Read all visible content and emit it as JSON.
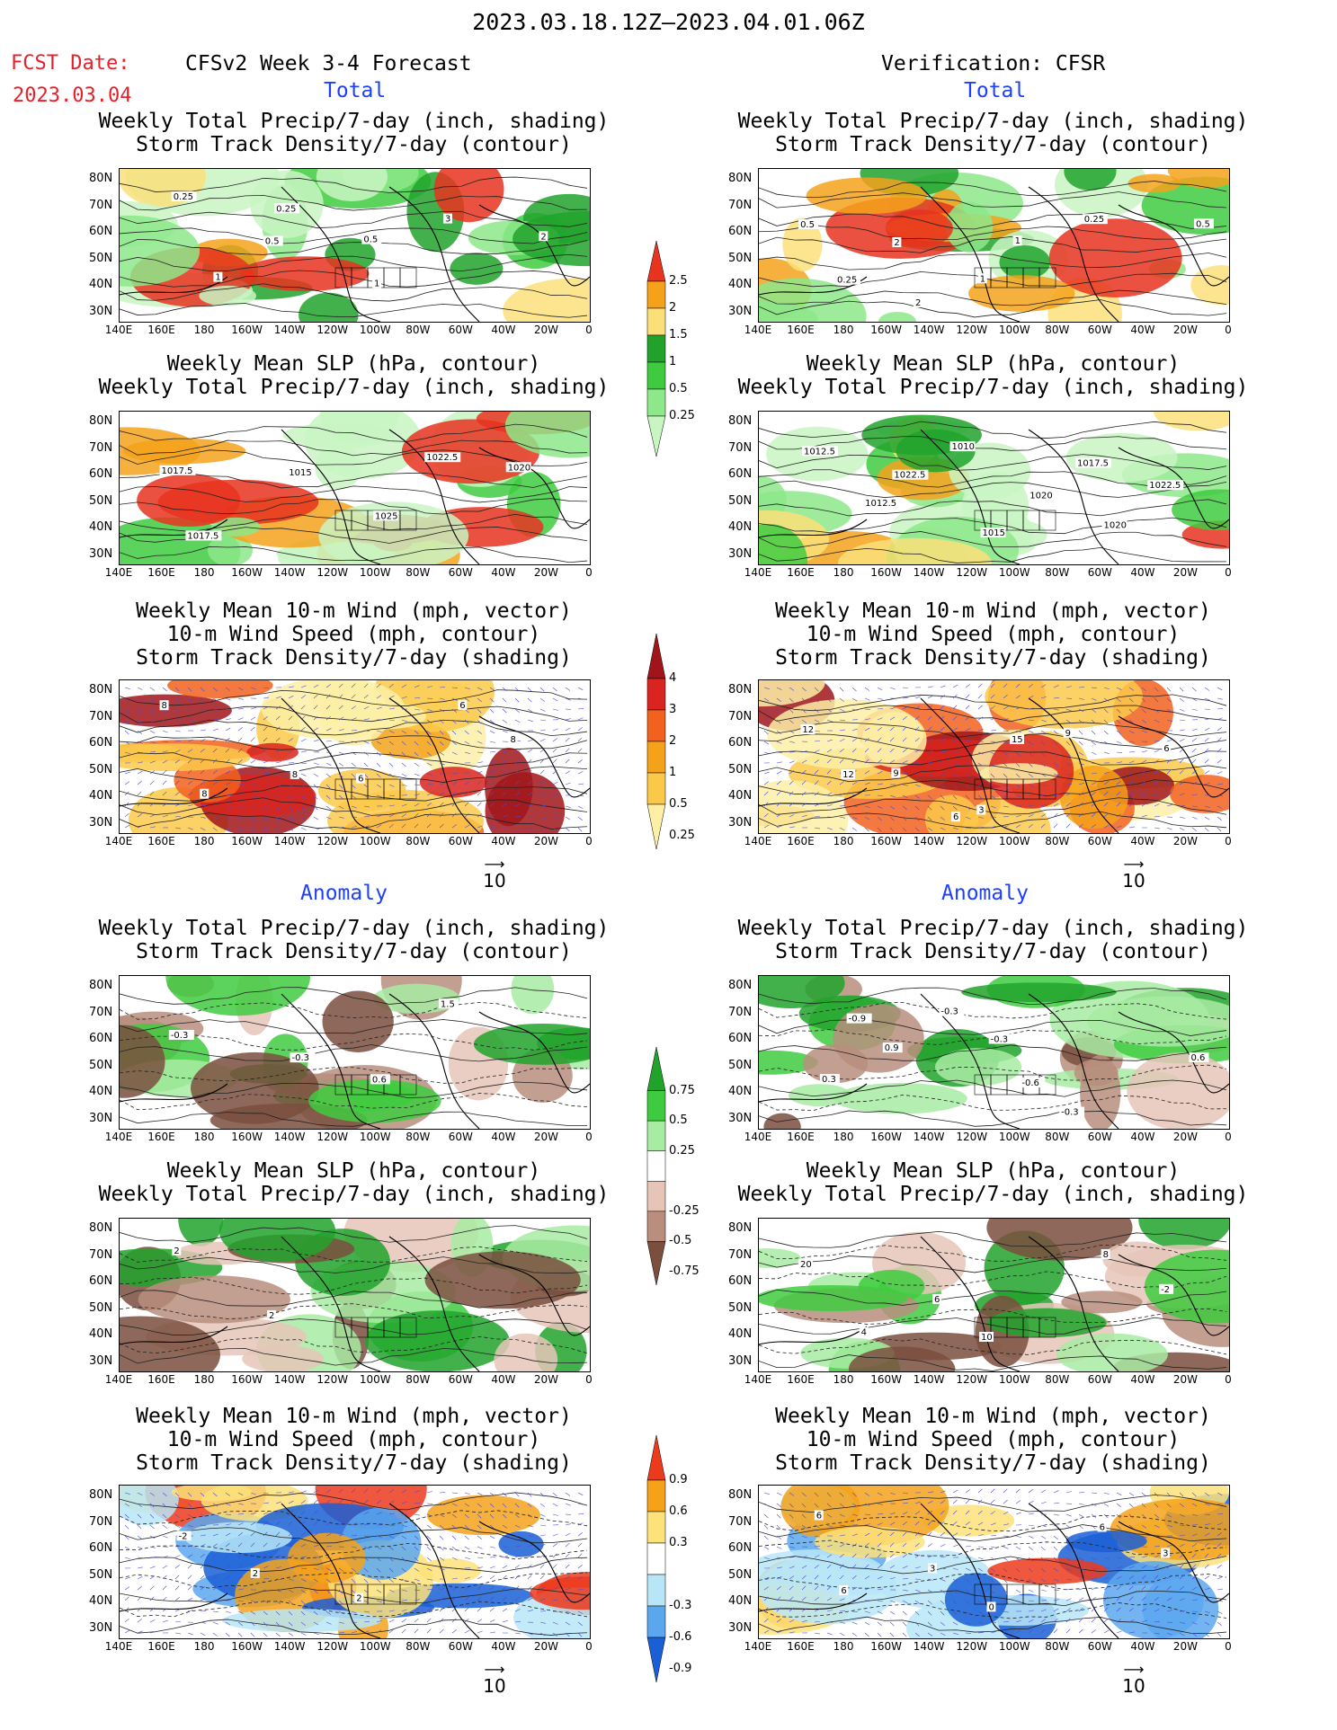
{
  "header": {
    "date_range": "2023.03.18.12Z–2023.04.01.06Z",
    "fcst_label": "FCST Date:",
    "fcst_date": "2023.03.04",
    "left_title": "CFSv2 Week 3-4 Forecast",
    "right_title": "Verification: CFSR"
  },
  "sections": {
    "total": "Total",
    "anomaly": "Anomaly"
  },
  "panel_titles": {
    "precip_storm": [
      "Weekly Total Precip/7-day (inch, shading)",
      "Storm Track Density/7-day (contour)"
    ],
    "slp_precip": [
      "Weekly Mean SLP (hPa, contour)",
      "Weekly Total Precip/7-day (inch, shading)"
    ],
    "wind_storm": [
      "Weekly Mean 10-m Wind (mph, vector)",
      "10-m Wind Speed (mph, contour)",
      "Storm Track Density/7-day (shading)"
    ]
  },
  "axes": {
    "lat_ticks": [
      "80N",
      "70N",
      "60N",
      "50N",
      "40N",
      "30N"
    ],
    "lon_ticks": [
      "140E",
      "160E",
      "180",
      "160W",
      "140W",
      "120W",
      "100W",
      "80W",
      "60W",
      "40W",
      "20W",
      "0"
    ]
  },
  "vector_ref": "10",
  "colorbars": {
    "precip": {
      "labels": [
        "2.5",
        "2",
        "1.5",
        "1",
        "0.5",
        "0.25"
      ],
      "colors": [
        "#e8331f",
        "#f5a21b",
        "#fbe07a",
        "#21a32b",
        "#3fcb3f",
        "#8de88a",
        "#c9f5c3"
      ]
    },
    "storm": {
      "labels": [
        "4",
        "3",
        "2",
        "1",
        "0.5",
        "0.25"
      ],
      "colors": [
        "#a1151a",
        "#d9241f",
        "#f2621e",
        "#f5a21b",
        "#fbc94a",
        "#fdf0a6"
      ]
    },
    "precip_anom": {
      "labels": [
        "0.75",
        "0.5",
        "0.25",
        "-0.25",
        "-0.5",
        "-0.75"
      ],
      "colors": [
        "#21a32b",
        "#3fcb3f",
        "#a8eba3",
        "#ffffff",
        "#e6c5b8",
        "#b98e7e",
        "#7a4f3e"
      ]
    },
    "storm_anom": {
      "labels": [
        "0.9",
        "0.6",
        "0.3",
        "-0.3",
        "-0.6",
        "-0.9"
      ],
      "colors": [
        "#ec3a1c",
        "#f5a21b",
        "#fde27a",
        "#ffffff",
        "#b9e6f7",
        "#5aa7ee",
        "#1a5fd6"
      ]
    }
  },
  "maps": {
    "fc_precip_storm": {
      "labels": [
        "0.25",
        "0.5",
        "1",
        "3",
        "2",
        "1",
        "0.25",
        "0.5"
      ]
    },
    "fc_slp": {
      "labels": [
        "1017.5",
        "1015",
        "1025",
        "1022.5",
        "1020",
        "1017.5"
      ]
    },
    "fc_wind": {
      "labels": [
        "8",
        "8",
        "6",
        "6",
        "8",
        "8"
      ]
    },
    "ob_precip_storm": {
      "labels": [
        "0.5",
        "2",
        "1",
        "0.25",
        "0.5",
        "0.25",
        "2",
        "1"
      ]
    },
    "ob_slp": {
      "labels": [
        "1012.5",
        "1022.5",
        "1015",
        "1017.5",
        "1022.5",
        "1012.5",
        "1010",
        "1020",
        "1020"
      ]
    },
    "ob_wind": {
      "labels": [
        "12",
        "9",
        "3",
        "9",
        "6",
        "12",
        "6",
        "15"
      ]
    },
    "fa_precip_storm": {
      "labels": [
        "-0.3",
        "-0.3",
        "0.6",
        "1.5"
      ]
    },
    "fa_slp": {
      "labels": [
        "2",
        "2"
      ]
    },
    "fa_wind": {
      "labels": [
        "-2",
        "2",
        "2"
      ]
    },
    "oa_precip_storm": {
      "labels": [
        "-0.9",
        "0.9",
        "-0.6",
        "-0.3",
        "0.6",
        "0.3",
        "-0.3",
        "-0.3"
      ]
    },
    "oa_slp": {
      "labels": [
        "20",
        "6",
        "10",
        "8",
        "-2",
        "4"
      ]
    },
    "oa_wind": {
      "labels": [
        "6",
        "3",
        "0",
        "6",
        "3",
        "6"
      ]
    }
  }
}
